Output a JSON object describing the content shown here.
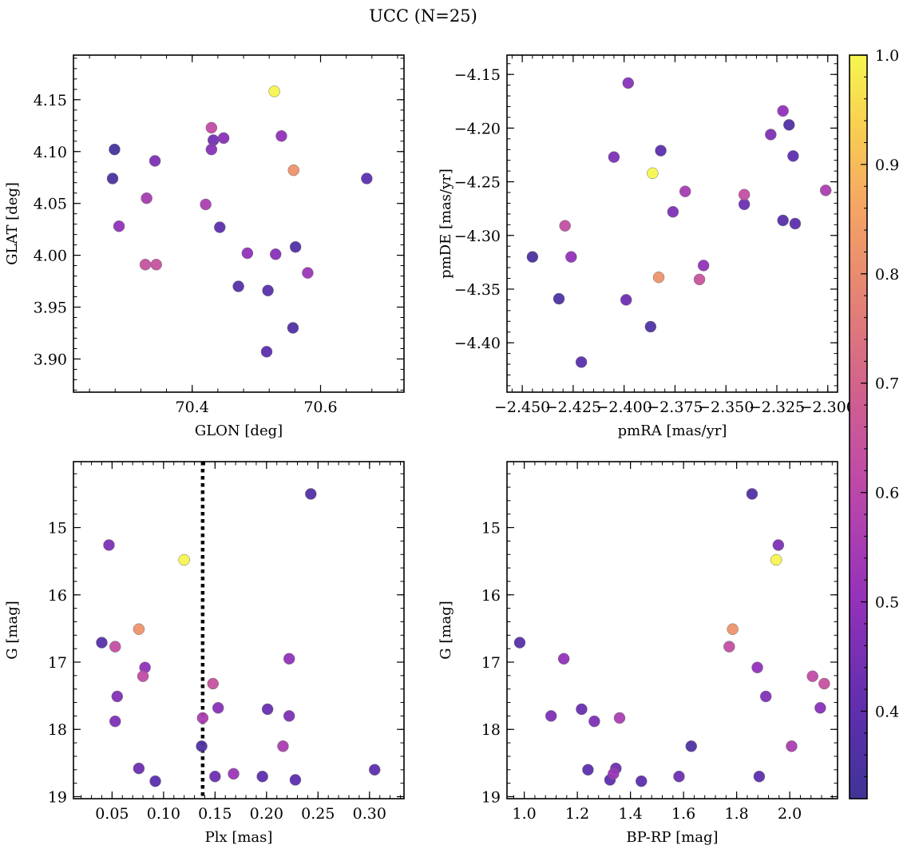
{
  "figure": {
    "title": "UCC (N=25)"
  },
  "colorbar": {
    "colormap": "plasma",
    "range": [
      0.32,
      1.0
    ],
    "tick_labels": [
      "0.4",
      "0.5",
      "0.6",
      "0.7",
      "0.8",
      "0.9",
      "1.0"
    ]
  },
  "chart_data": [
    {
      "id": "glon-glat",
      "type": "scatter",
      "title": "",
      "xlabel": "GLON [deg]",
      "ylabel": "GLAT [deg]",
      "xlim": [
        70.215,
        70.73
      ],
      "ylim": [
        3.868,
        4.193
      ],
      "x_ticks": [
        70.4,
        70.6
      ],
      "x_tick_labels": [
        "70.4",
        "70.6"
      ],
      "y_ticks": [
        3.9,
        3.95,
        4.0,
        4.05,
        4.1,
        4.15
      ],
      "y_tick_labels": [
        "3.90",
        "3.95",
        "4.00",
        "4.05",
        "4.10",
        "4.15"
      ],
      "points": [
        {
          "x": 70.528,
          "y": 4.158,
          "c": 1.0
        },
        {
          "x": 70.43,
          "y": 4.123,
          "c": 0.62
        },
        {
          "x": 70.539,
          "y": 4.115,
          "c": 0.5
        },
        {
          "x": 70.449,
          "y": 4.113,
          "c": 0.48
        },
        {
          "x": 70.433,
          "y": 4.111,
          "c": 0.44
        },
        {
          "x": 70.279,
          "y": 4.102,
          "c": 0.34
        },
        {
          "x": 70.43,
          "y": 4.102,
          "c": 0.48
        },
        {
          "x": 70.342,
          "y": 4.091,
          "c": 0.46
        },
        {
          "x": 70.558,
          "y": 4.082,
          "c": 0.82
        },
        {
          "x": 70.276,
          "y": 4.074,
          "c": 0.35
        },
        {
          "x": 70.672,
          "y": 4.074,
          "c": 0.4
        },
        {
          "x": 70.329,
          "y": 4.055,
          "c": 0.55
        },
        {
          "x": 70.421,
          "y": 4.049,
          "c": 0.56
        },
        {
          "x": 70.286,
          "y": 4.028,
          "c": 0.5
        },
        {
          "x": 70.443,
          "y": 4.027,
          "c": 0.4
        },
        {
          "x": 70.561,
          "y": 4.008,
          "c": 0.37
        },
        {
          "x": 70.486,
          "y": 4.002,
          "c": 0.5
        },
        {
          "x": 70.53,
          "y": 4.001,
          "c": 0.48
        },
        {
          "x": 70.327,
          "y": 3.991,
          "c": 0.64
        },
        {
          "x": 70.344,
          "y": 3.991,
          "c": 0.64
        },
        {
          "x": 70.58,
          "y": 3.983,
          "c": 0.52
        },
        {
          "x": 70.472,
          "y": 3.97,
          "c": 0.38
        },
        {
          "x": 70.518,
          "y": 3.966,
          "c": 0.39
        },
        {
          "x": 70.557,
          "y": 3.93,
          "c": 0.37
        },
        {
          "x": 70.516,
          "y": 3.907,
          "c": 0.4
        }
      ]
    },
    {
      "id": "pmra-pmde",
      "type": "scatter",
      "title": "",
      "xlabel": "pmRA [mas/yr]",
      "ylabel": "pmDE [mas/yr]",
      "xlim": [
        -2.4575,
        -2.2952
      ],
      "ylim": [
        -4.446,
        -4.132
      ],
      "x_ticks": [
        -2.45,
        -2.425,
        -2.4,
        -2.375,
        -2.35,
        -2.325,
        -2.3
      ],
      "x_tick_labels": [
        "−2.450",
        "−2.425",
        "−2.400",
        "−2.375",
        "−2.350",
        "−2.325",
        "−2.300"
      ],
      "y_ticks": [
        -4.4,
        -4.35,
        -4.3,
        -4.25,
        -4.2,
        -4.15
      ],
      "y_tick_labels": [
        "−4.40",
        "−4.35",
        "−4.30",
        "−4.25",
        "−4.20",
        "−4.15"
      ],
      "points": [
        {
          "x": -2.398,
          "y": -4.158,
          "c": 0.48
        },
        {
          "x": -2.322,
          "y": -4.184,
          "c": 0.5
        },
        {
          "x": -2.319,
          "y": -4.197,
          "c": 0.37
        },
        {
          "x": -2.328,
          "y": -4.206,
          "c": 0.46
        },
        {
          "x": -2.382,
          "y": -4.221,
          "c": 0.4
        },
        {
          "x": -2.317,
          "y": -4.226,
          "c": 0.4
        },
        {
          "x": -2.405,
          "y": -4.227,
          "c": 0.46
        },
        {
          "x": -2.386,
          "y": -4.242,
          "c": 1.0
        },
        {
          "x": -2.37,
          "y": -4.259,
          "c": 0.55
        },
        {
          "x": -2.301,
          "y": -4.258,
          "c": 0.56
        },
        {
          "x": -2.341,
          "y": -4.262,
          "c": 0.63
        },
        {
          "x": -2.341,
          "y": -4.271,
          "c": 0.43
        },
        {
          "x": -2.376,
          "y": -4.278,
          "c": 0.46
        },
        {
          "x": -2.322,
          "y": -4.286,
          "c": 0.38
        },
        {
          "x": -2.316,
          "y": -4.289,
          "c": 0.4
        },
        {
          "x": -2.429,
          "y": -4.291,
          "c": 0.63
        },
        {
          "x": -2.426,
          "y": -4.32,
          "c": 0.5
        },
        {
          "x": -2.445,
          "y": -4.32,
          "c": 0.35
        },
        {
          "x": -2.361,
          "y": -4.328,
          "c": 0.5
        },
        {
          "x": -2.383,
          "y": -4.339,
          "c": 0.82
        },
        {
          "x": -2.363,
          "y": -4.341,
          "c": 0.65
        },
        {
          "x": -2.432,
          "y": -4.359,
          "c": 0.36
        },
        {
          "x": -2.399,
          "y": -4.36,
          "c": 0.43
        },
        {
          "x": -2.387,
          "y": -4.385,
          "c": 0.36
        },
        {
          "x": -2.421,
          "y": -4.418,
          "c": 0.39
        }
      ]
    },
    {
      "id": "plx-g",
      "type": "scatter",
      "title": "",
      "xlabel": "Plx [mas]",
      "ylabel": "G [mag]",
      "xlim": [
        0.0125,
        0.3335
      ],
      "ylim": [
        19.03,
        14.02
      ],
      "y_inverted": true,
      "x_ticks": [
        0.05,
        0.1,
        0.15,
        0.2,
        0.25,
        0.3
      ],
      "x_tick_labels": [
        "0.05",
        "0.10",
        "0.15",
        "0.20",
        "0.25",
        "0.30"
      ],
      "y_ticks": [
        15,
        16,
        17,
        18,
        19
      ],
      "y_tick_labels": [
        "15",
        "16",
        "17",
        "18",
        "19"
      ],
      "vline": {
        "x": 0.138,
        "style": "dotted"
      },
      "points": [
        {
          "x": 0.243,
          "y": 14.5,
          "c": 0.37
        },
        {
          "x": 0.047,
          "y": 15.26,
          "c": 0.46
        },
        {
          "x": 0.12,
          "y": 15.48,
          "c": 1.0
        },
        {
          "x": 0.076,
          "y": 16.51,
          "c": 0.82
        },
        {
          "x": 0.04,
          "y": 16.71,
          "c": 0.38
        },
        {
          "x": 0.053,
          "y": 16.77,
          "c": 0.63
        },
        {
          "x": 0.222,
          "y": 16.95,
          "c": 0.5
        },
        {
          "x": 0.082,
          "y": 17.08,
          "c": 0.5
        },
        {
          "x": 0.08,
          "y": 17.21,
          "c": 0.62
        },
        {
          "x": 0.148,
          "y": 17.32,
          "c": 0.64
        },
        {
          "x": 0.055,
          "y": 17.51,
          "c": 0.47
        },
        {
          "x": 0.153,
          "y": 17.68,
          "c": 0.48
        },
        {
          "x": 0.201,
          "y": 17.7,
          "c": 0.42
        },
        {
          "x": 0.222,
          "y": 17.8,
          "c": 0.46
        },
        {
          "x": 0.138,
          "y": 17.83,
          "c": 0.56
        },
        {
          "x": 0.053,
          "y": 17.88,
          "c": 0.46
        },
        {
          "x": 0.216,
          "y": 18.25,
          "c": 0.56
        },
        {
          "x": 0.137,
          "y": 18.25,
          "c": 0.36
        },
        {
          "x": 0.076,
          "y": 18.58,
          "c": 0.43
        },
        {
          "x": 0.305,
          "y": 18.6,
          "c": 0.4
        },
        {
          "x": 0.168,
          "y": 18.66,
          "c": 0.52
        },
        {
          "x": 0.15,
          "y": 18.7,
          "c": 0.43
        },
        {
          "x": 0.196,
          "y": 18.7,
          "c": 0.4
        },
        {
          "x": 0.228,
          "y": 18.75,
          "c": 0.4
        },
        {
          "x": 0.092,
          "y": 18.77,
          "c": 0.4
        }
      ]
    },
    {
      "id": "bprp-g",
      "type": "scatter",
      "title": "",
      "xlabel": "BP-RP [mag]",
      "ylabel": "G [mag]",
      "xlim": [
        0.935,
        2.18
      ],
      "ylim": [
        19.03,
        14.02
      ],
      "y_inverted": true,
      "x_ticks": [
        1.0,
        1.2,
        1.4,
        1.6,
        1.8,
        2.0
      ],
      "x_tick_labels": [
        "1.0",
        "1.2",
        "1.4",
        "1.6",
        "1.8",
        "2.0"
      ],
      "y_ticks": [
        15,
        16,
        17,
        18,
        19
      ],
      "y_tick_labels": [
        "15",
        "16",
        "17",
        "18",
        "19"
      ],
      "points": [
        {
          "x": 1.858,
          "y": 14.5,
          "c": 0.37
        },
        {
          "x": 1.957,
          "y": 15.26,
          "c": 0.46
        },
        {
          "x": 1.949,
          "y": 15.48,
          "c": 1.0
        },
        {
          "x": 1.785,
          "y": 16.51,
          "c": 0.82
        },
        {
          "x": 0.983,
          "y": 16.71,
          "c": 0.38
        },
        {
          "x": 1.772,
          "y": 16.77,
          "c": 0.63
        },
        {
          "x": 1.149,
          "y": 16.95,
          "c": 0.5
        },
        {
          "x": 1.878,
          "y": 17.08,
          "c": 0.5
        },
        {
          "x": 2.086,
          "y": 17.21,
          "c": 0.62
        },
        {
          "x": 2.13,
          "y": 17.32,
          "c": 0.64
        },
        {
          "x": 1.91,
          "y": 17.51,
          "c": 0.47
        },
        {
          "x": 2.115,
          "y": 17.68,
          "c": 0.48
        },
        {
          "x": 1.216,
          "y": 17.7,
          "c": 0.42
        },
        {
          "x": 1.101,
          "y": 17.8,
          "c": 0.46
        },
        {
          "x": 1.359,
          "y": 17.83,
          "c": 0.56
        },
        {
          "x": 1.264,
          "y": 17.88,
          "c": 0.46
        },
        {
          "x": 2.007,
          "y": 18.25,
          "c": 0.56
        },
        {
          "x": 1.629,
          "y": 18.25,
          "c": 0.36
        },
        {
          "x": 1.345,
          "y": 18.58,
          "c": 0.43
        },
        {
          "x": 1.24,
          "y": 18.6,
          "c": 0.4
        },
        {
          "x": 1.336,
          "y": 18.66,
          "c": 0.52
        },
        {
          "x": 1.583,
          "y": 18.7,
          "c": 0.43
        },
        {
          "x": 1.885,
          "y": 18.7,
          "c": 0.4
        },
        {
          "x": 1.323,
          "y": 18.75,
          "c": 0.4
        },
        {
          "x": 1.441,
          "y": 18.77,
          "c": 0.4
        }
      ]
    }
  ]
}
